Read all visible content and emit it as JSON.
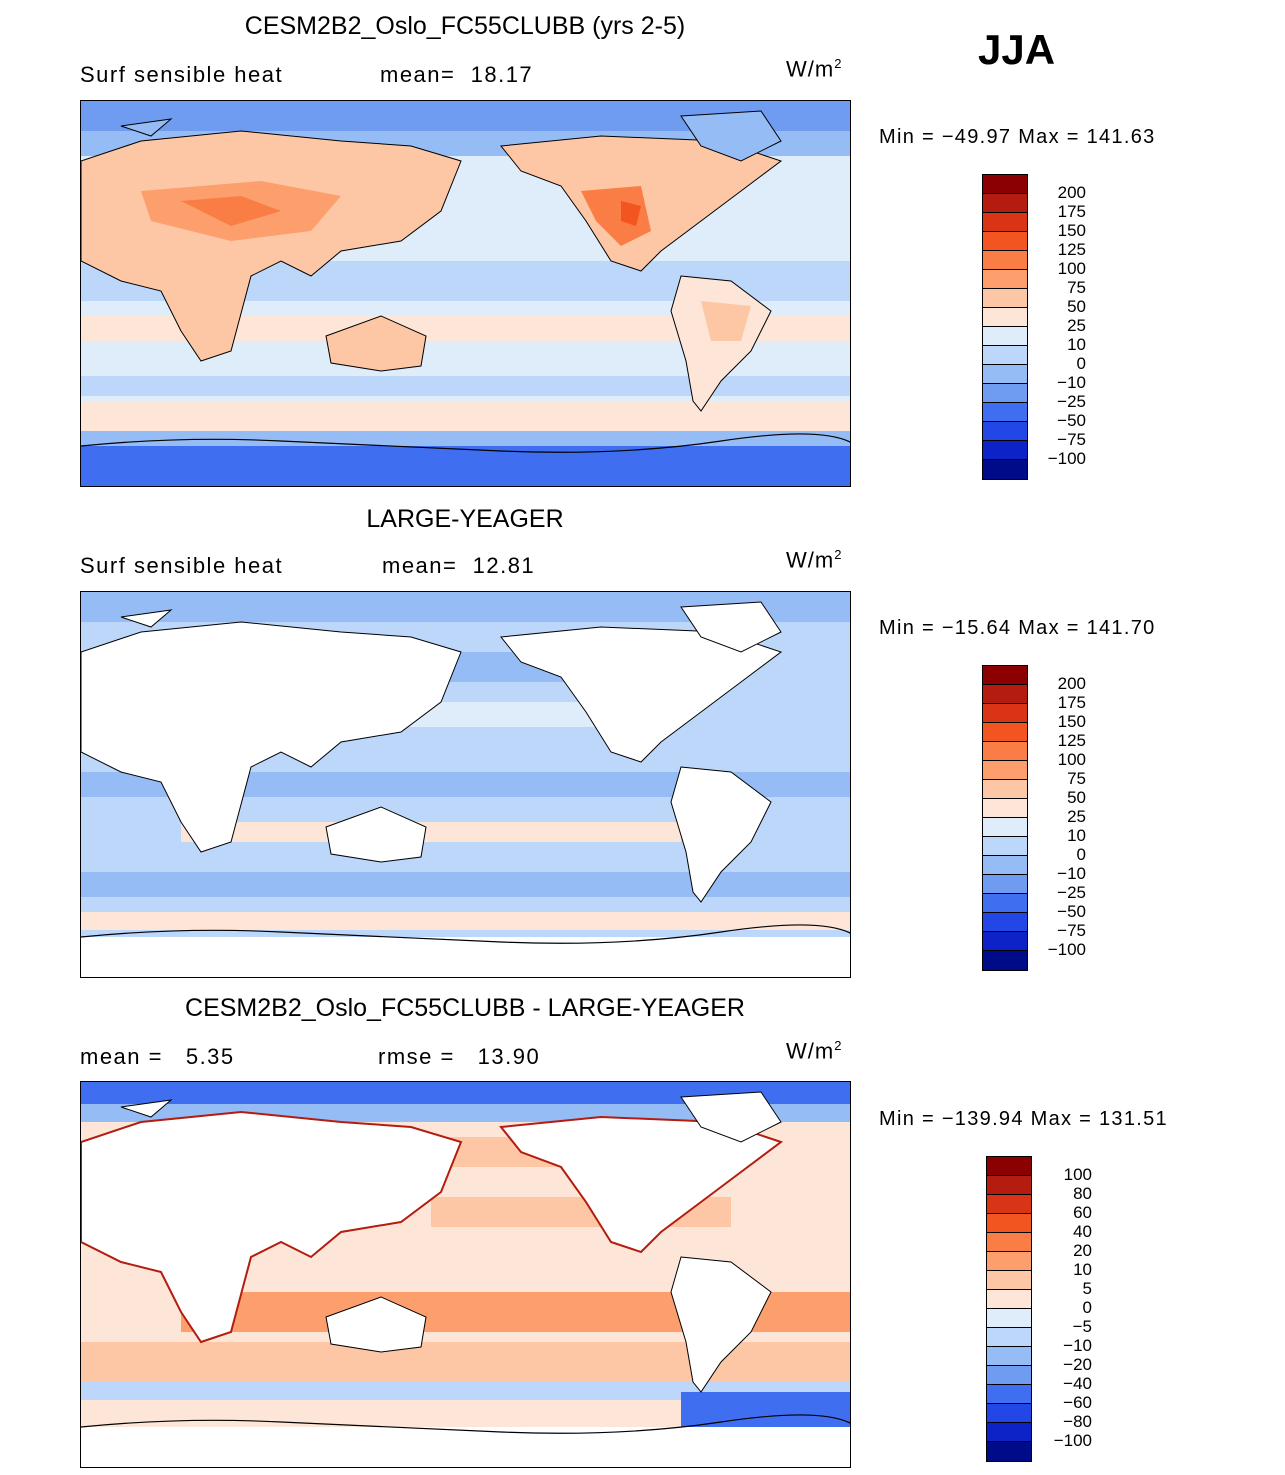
{
  "season": "JJA",
  "units": "W/m",
  "units_sup": "2",
  "panels": [
    {
      "title": "CESM2B2_Oslo_FC55CLUBB (yrs 2-5)",
      "sub_left": "Surf sensible heat",
      "sub_mid": "mean=  18.17",
      "minmax": "Min = −49.97 Max = 141.63",
      "levels": [
        "200",
        "175",
        "150",
        "125",
        "100",
        "75",
        "50",
        "25",
        "10",
        "0",
        "−10",
        "−25",
        "−50",
        "−75",
        "−100"
      ],
      "colors": [
        "#8b0000",
        "#b31c0f",
        "#d93415",
        "#f2551f",
        "#fa7d45",
        "#fc9f6c",
        "#fdc7a5",
        "#fde6d8",
        "#dfecfa",
        "#bdd7fb",
        "#96bcf5",
        "#6f9bf1",
        "#3f6ef0",
        "#2247e6",
        "#0d23c8",
        "#000b8a"
      ],
      "map": "land-filled"
    },
    {
      "title": "LARGE-YEAGER",
      "sub_left": "Surf sensible heat",
      "sub_mid": "mean=  12.81",
      "minmax": "Min = −15.64 Max = 141.70",
      "levels": [
        "200",
        "175",
        "150",
        "125",
        "100",
        "75",
        "50",
        "25",
        "10",
        "0",
        "−10",
        "−25",
        "−50",
        "−75",
        "−100"
      ],
      "colors": [
        "#8b0000",
        "#b31c0f",
        "#d93415",
        "#f2551f",
        "#fa7d45",
        "#fc9f6c",
        "#fdc7a5",
        "#fde6d8",
        "#dfecfa",
        "#bdd7fb",
        "#96bcf5",
        "#6f9bf1",
        "#3f6ef0",
        "#2247e6",
        "#0d23c8",
        "#000b8a"
      ],
      "map": "ocean-only"
    },
    {
      "title": "CESM2B2_Oslo_FC55CLUBB - LARGE-YEAGER",
      "sub_left": "mean =   5.35",
      "sub_mid": "rmse =   13.90",
      "minmax": "Min = −139.94 Max = 131.51",
      "levels": [
        "100",
        "80",
        "60",
        "40",
        "20",
        "10",
        "5",
        "0",
        "−5",
        "−10",
        "−20",
        "−40",
        "−60",
        "−80",
        "−100"
      ],
      "colors": [
        "#8b0000",
        "#b31c0f",
        "#d93415",
        "#f2551f",
        "#fa7d45",
        "#fc9f6c",
        "#fdc7a5",
        "#fde6d8",
        "#dfecfa",
        "#bdd7fb",
        "#96bcf5",
        "#6f9bf1",
        "#3f6ef0",
        "#2247e6",
        "#0d23c8",
        "#000b8a"
      ],
      "map": "difference"
    }
  ]
}
